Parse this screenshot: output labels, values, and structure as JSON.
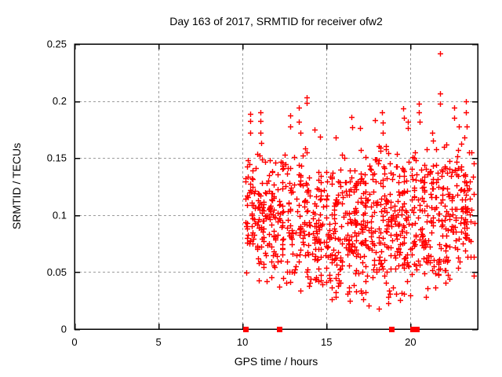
{
  "window": {
    "background": "#ffffff"
  },
  "chart_data": {
    "type": "scatter",
    "title": "Day 163 of 2017, SRMTID for receiver ofw2",
    "xlabel": "GPS time / hours",
    "ylabel": "SRMTID / TECUs",
    "xlim": [
      0,
      24
    ],
    "ylim": [
      0,
      0.25
    ],
    "xticks": {
      "values": [
        0,
        5,
        10,
        15,
        20
      ],
      "labels": [
        "0",
        "5",
        "10",
        "15",
        "20"
      ]
    },
    "yticks": {
      "values": [
        0,
        0.05,
        0.1,
        0.15,
        0.2,
        0.25
      ],
      "labels": [
        "0",
        "0.05",
        "0.1",
        "0.15",
        "0.2",
        "0.25"
      ]
    },
    "grid": {
      "show": true,
      "style": "dashed",
      "color": "#9c9c9c"
    },
    "legend": "none",
    "colors": {
      "marker": "#ff0000",
      "border": "#000000",
      "text": "#000000"
    },
    "series": [
      {
        "name": "srmtid-values",
        "marker": "plus",
        "color": "#ff0000",
        "x_range_hours": [
          10.15,
          23.8
        ],
        "y_range_tecus": [
          0.018,
          0.242
        ],
        "points": [
          [
            10.45,
            0.189
          ],
          [
            10.45,
            0.1825
          ],
          [
            10.47,
            0.172
          ],
          [
            11.05,
            0.19
          ],
          [
            11.05,
            0.1825
          ],
          [
            11.08,
            0.172
          ],
          [
            11.1,
            0.163
          ],
          [
            12.82,
            0.187
          ],
          [
            12.85,
            0.178
          ],
          [
            13.35,
            0.194
          ],
          [
            13.37,
            0.182
          ],
          [
            13.45,
            0.172
          ],
          [
            13.8,
            0.203
          ],
          [
            13.82,
            0.1985
          ],
          [
            14.3,
            0.175
          ],
          [
            14.62,
            0.169
          ],
          [
            15.55,
            0.168
          ],
          [
            16.5,
            0.186
          ],
          [
            16.55,
            0.177
          ],
          [
            17.0,
            0.176
          ],
          [
            17.88,
            0.183
          ],
          [
            18.3,
            0.19
          ],
          [
            18.33,
            0.181
          ],
          [
            18.36,
            0.172
          ],
          [
            19.56,
            0.1935
          ],
          [
            19.6,
            0.185
          ],
          [
            19.84,
            0.182
          ],
          [
            19.86,
            0.176
          ],
          [
            20.5,
            0.198
          ],
          [
            20.52,
            0.19
          ],
          [
            20.55,
            0.182
          ],
          [
            21.3,
            0.172
          ],
          [
            21.76,
            0.2417
          ],
          [
            21.76,
            0.2066
          ],
          [
            21.77,
            0.198
          ],
          [
            22.6,
            0.194
          ],
          [
            22.62,
            0.185
          ],
          [
            22.9,
            0.178
          ],
          [
            23.3,
            0.2
          ],
          [
            23.32,
            0.19
          ],
          [
            23.35,
            0.178
          ],
          [
            15.3,
            0.026
          ],
          [
            16.4,
            0.025
          ],
          [
            17.5,
            0.021
          ],
          [
            18.12,
            0.018
          ],
          [
            19.4,
            0.0255
          ],
          [
            20.9,
            0.028
          ]
        ],
        "dense_cloud": {
          "seed": 20170163,
          "column_repeat_prob": 0.32,
          "x_quantum_hours": 0.033333,
          "bands": [
            [
              10.15,
              10.75,
              46,
              0.105,
              0.042,
              0.048,
              0.158
            ],
            [
              10.75,
              11.5,
              54,
              0.098,
              0.042,
              0.04,
              0.16
            ],
            [
              11.5,
              12.3,
              60,
              0.09,
              0.04,
              0.033,
              0.155
            ],
            [
              12.3,
              13.1,
              58,
              0.094,
              0.042,
              0.04,
              0.158
            ],
            [
              13.1,
              14.0,
              68,
              0.098,
              0.045,
              0.033,
              0.162
            ],
            [
              14.0,
              15.0,
              70,
              0.091,
              0.04,
              0.031,
              0.158
            ],
            [
              15.0,
              16.0,
              76,
              0.089,
              0.041,
              0.028,
              0.155
            ],
            [
              16.0,
              17.0,
              80,
              0.092,
              0.042,
              0.027,
              0.16
            ],
            [
              17.0,
              18.0,
              86,
              0.09,
              0.043,
              0.024,
              0.158
            ],
            [
              18.0,
              19.0,
              86,
              0.094,
              0.044,
              0.022,
              0.162
            ],
            [
              19.0,
              20.0,
              80,
              0.092,
              0.043,
              0.028,
              0.16
            ],
            [
              20.0,
              21.0,
              76,
              0.095,
              0.044,
              0.031,
              0.163
            ],
            [
              21.0,
              22.0,
              70,
              0.099,
              0.046,
              0.032,
              0.168
            ],
            [
              22.0,
              23.0,
              74,
              0.099,
              0.044,
              0.04,
              0.165
            ],
            [
              23.0,
              23.8,
              60,
              0.104,
              0.044,
              0.046,
              0.168
            ]
          ]
        }
      },
      {
        "name": "event-markers",
        "marker": "filled-square",
        "color": "#ff0000",
        "points": [
          [
            10.18,
            0
          ],
          [
            12.23,
            0
          ],
          [
            18.91,
            0
          ],
          [
            20.17,
            0
          ],
          [
            20.4,
            0
          ]
        ]
      }
    ]
  }
}
